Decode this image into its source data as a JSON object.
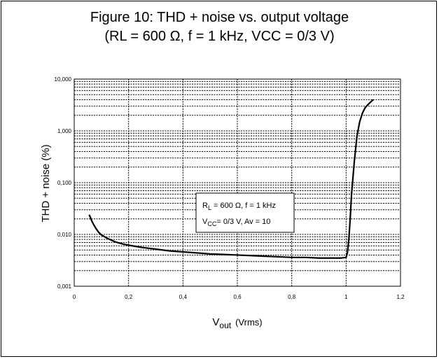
{
  "figure": {
    "title_line1": "Figure 10: THD + noise vs. output voltage",
    "title_line2": "(RL = 600 Ω, f = 1 kHz, VCC = 0/3 V)"
  },
  "chart_data": {
    "type": "line",
    "title": "Figure 10: THD + noise vs. output voltage (RL = 600 Ω, f = 1 kHz, VCC = 0/3 V)",
    "xlabel": {
      "main": "V",
      "sub": "out",
      "unit": "(Vrms)"
    },
    "ylabel": "THD + noise (%)",
    "xlim": [
      0,
      1.2
    ],
    "ylim": [
      0.001,
      10
    ],
    "yscale": "log",
    "grid": true,
    "x_ticks": [
      "0",
      "0,2",
      "0,4",
      "0,6",
      "0,8",
      "1",
      "1,2"
    ],
    "y_ticks": [
      "10,000",
      "1,000",
      "0,100",
      "0,010",
      "0,001"
    ],
    "annotation": {
      "line1": {
        "main": "R",
        "sub": "L",
        "rest": " = 600 Ω, f = 1 kHz"
      },
      "line2": {
        "main": "V",
        "sub": "CC",
        "rest": "= 0/3 V, Av = 10"
      }
    },
    "series": [
      {
        "x": [
          0.055,
          0.06,
          0.065,
          0.07,
          0.08,
          0.09,
          0.1,
          0.12,
          0.15,
          0.18,
          0.2,
          0.25,
          0.3,
          0.35,
          0.4,
          0.45,
          0.5,
          0.55,
          0.6,
          0.65,
          0.7,
          0.75,
          0.8,
          0.85,
          0.9,
          0.95,
          0.98,
          1.0,
          1.005,
          1.01,
          1.015,
          1.02,
          1.03,
          1.04,
          1.05,
          1.06,
          1.07,
          1.08,
          1.09,
          1.1
        ],
        "values": [
          0.024,
          0.021,
          0.018,
          0.016,
          0.013,
          0.011,
          0.0098,
          0.0085,
          0.0072,
          0.0065,
          0.0062,
          0.0056,
          0.0052,
          0.0048,
          0.0046,
          0.0044,
          0.0042,
          0.0041,
          0.004,
          0.0039,
          0.0038,
          0.0037,
          0.0036,
          0.0036,
          0.0035,
          0.0035,
          0.0035,
          0.0036,
          0.0045,
          0.008,
          0.02,
          0.06,
          0.25,
          0.8,
          1.5,
          2.2,
          2.8,
          3.2,
          3.6,
          4.0
        ]
      }
    ]
  }
}
